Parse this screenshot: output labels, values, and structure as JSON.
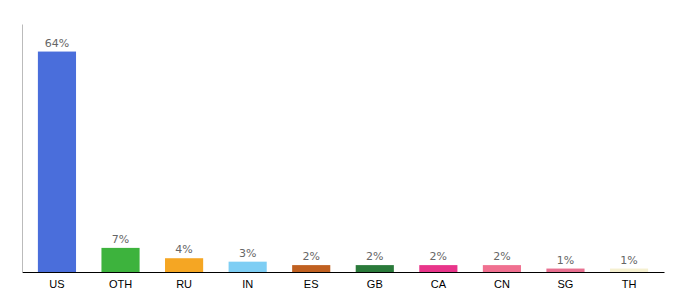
{
  "chart_data": {
    "type": "bar",
    "categories": [
      "US",
      "OTH",
      "RU",
      "IN",
      "ES",
      "GB",
      "CA",
      "CN",
      "SG",
      "TH"
    ],
    "values": [
      64,
      7,
      4,
      3,
      2,
      2,
      2,
      2,
      1,
      1
    ],
    "value_labels": [
      "64%",
      "7%",
      "4%",
      "3%",
      "2%",
      "2%",
      "2%",
      "2%",
      "1%",
      "1%"
    ],
    "colors": [
      "#4a6edb",
      "#3db33d",
      "#f5a623",
      "#7ecef4",
      "#c06020",
      "#2a7a3a",
      "#e8358a",
      "#f07090",
      "#e87090",
      "#f5f0d0"
    ],
    "ylim": [
      0,
      72
    ],
    "data_labels": true,
    "grid": false,
    "tick_labels": "x"
  }
}
